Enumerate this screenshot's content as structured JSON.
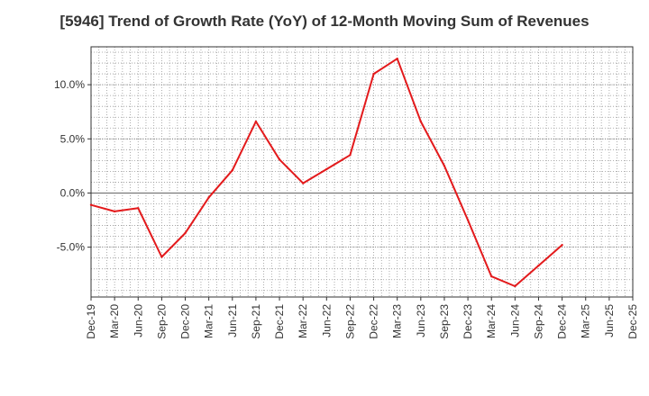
{
  "chart_data": {
    "type": "line",
    "title": "[5946]  Trend of Growth Rate (YoY) of 12-Month Moving Sum of Revenues",
    "xlabel": "",
    "ylabel": "",
    "x_ticks": [
      "Dec-19",
      "Mar-20",
      "Jun-20",
      "Sep-20",
      "Dec-20",
      "Mar-21",
      "Jun-21",
      "Sep-21",
      "Dec-21",
      "Mar-22",
      "Jun-22",
      "Sep-22",
      "Dec-22",
      "Mar-23",
      "Jun-23",
      "Sep-23",
      "Dec-23",
      "Mar-24",
      "Jun-24",
      "Sep-24",
      "Dec-24",
      "Mar-25",
      "Jun-25",
      "Dec-25"
    ],
    "y_ticks": [
      {
        "value": 10,
        "label": "10.0%"
      },
      {
        "value": 5,
        "label": "5.0%"
      },
      {
        "value": 0,
        "label": "0.0%"
      },
      {
        "value": -5,
        "label": "-5.0%"
      }
    ],
    "ylim": [
      -9.6,
      13.5
    ],
    "grid": true,
    "line_color": "#e31a1c",
    "series": [
      {
        "name": "",
        "categories": [
          "Dec-19",
          "Mar-20",
          "Jun-20",
          "Sep-20",
          "Dec-20",
          "Mar-21",
          "Jun-21",
          "Sep-21",
          "Dec-21",
          "Mar-22",
          "Jun-22",
          "Sep-22",
          "Dec-22",
          "Mar-23",
          "Jun-23",
          "Sep-23",
          "Dec-23",
          "Mar-24",
          "Jun-24",
          "Sep-24",
          "Dec-24"
        ],
        "values": [
          -1.1,
          -1.7,
          -1.4,
          -5.9,
          -3.7,
          -0.4,
          2.1,
          6.6,
          3.1,
          0.9,
          2.2,
          3.5,
          11.0,
          12.4,
          6.6,
          2.5,
          -2.5,
          -7.7,
          -8.6,
          -6.7,
          -4.8
        ]
      }
    ]
  }
}
